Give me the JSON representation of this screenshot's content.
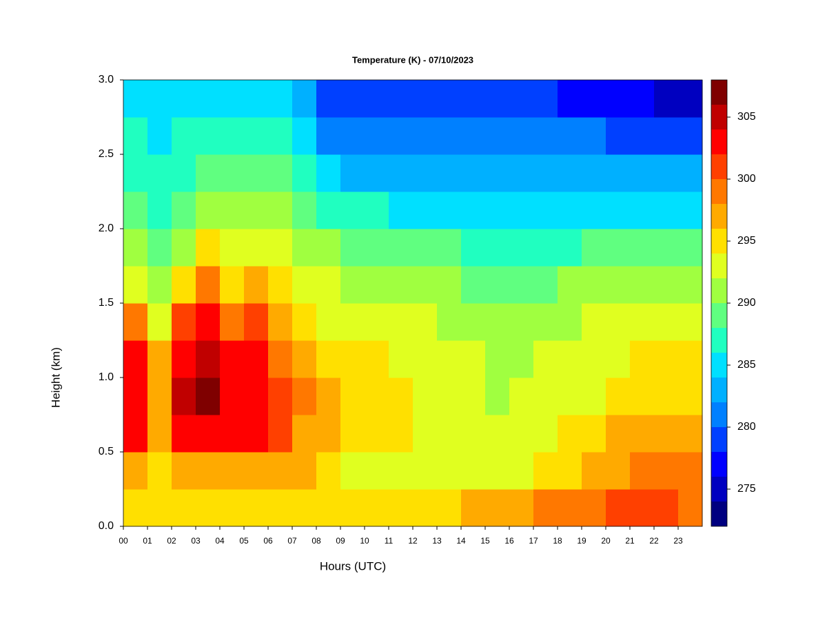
{
  "chart_data": {
    "type": "heatmap",
    "title": "Temperature (K) - 07/10/2023",
    "x_label": "Hours (UTC)",
    "y_label": "Height (km)",
    "xlim": [
      0,
      24
    ],
    "ylim": [
      0,
      3
    ],
    "xticks": [
      {
        "value": 0,
        "label": "00"
      },
      {
        "value": 1,
        "label": "01"
      },
      {
        "value": 2,
        "label": "02"
      },
      {
        "value": 3,
        "label": "03"
      },
      {
        "value": 4,
        "label": "04"
      },
      {
        "value": 5,
        "label": "05"
      },
      {
        "value": 6,
        "label": "06"
      },
      {
        "value": 7,
        "label": "07"
      },
      {
        "value": 8,
        "label": "08"
      },
      {
        "value": 9,
        "label": "09"
      },
      {
        "value": 10,
        "label": "10"
      },
      {
        "value": 11,
        "label": "11"
      },
      {
        "value": 12,
        "label": "12"
      },
      {
        "value": 13,
        "label": "13"
      },
      {
        "value": 14,
        "label": "14"
      },
      {
        "value": 15,
        "label": "15"
      },
      {
        "value": 16,
        "label": "16"
      },
      {
        "value": 17,
        "label": "17"
      },
      {
        "value": 18,
        "label": "18"
      },
      {
        "value": 19,
        "label": "19"
      },
      {
        "value": 20,
        "label": "20"
      },
      {
        "value": 21,
        "label": "21"
      },
      {
        "value": 22,
        "label": "22"
      },
      {
        "value": 23,
        "label": "23"
      }
    ],
    "yticks": [
      {
        "value": 0,
        "label": "0.0"
      },
      0.5,
      {
        "value": 1,
        "label": "1.0"
      },
      1.5,
      {
        "value": 2,
        "label": "2.0"
      },
      2.5,
      {
        "value": 3,
        "label": "3.0"
      }
    ],
    "x": [
      0.5,
      1.5,
      2.5,
      3.5,
      4.5,
      5.5,
      6.5,
      7.5,
      8.5,
      9.5,
      10.5,
      11.5,
      12.5,
      13.5,
      14.5,
      15.5,
      16.5,
      17.5,
      18.5,
      19.5,
      20.5,
      21.5,
      22.5,
      23.5
    ],
    "y": [
      0.125,
      0.375,
      0.625,
      0.875,
      1.125,
      1.375,
      1.625,
      1.875,
      2.125,
      2.375,
      2.625,
      2.875
    ],
    "z": [
      [
        295,
        295,
        295,
        295,
        295,
        295,
        295,
        295,
        294,
        294,
        294,
        294,
        294,
        295,
        296,
        297,
        297,
        298,
        298,
        299,
        300,
        301,
        300,
        299
      ],
      [
        296,
        295,
        296,
        297,
        297,
        296,
        297,
        296,
        294,
        293,
        293,
        293,
        293,
        293,
        293,
        293,
        293,
        294,
        295,
        296,
        297,
        298,
        298,
        298
      ],
      [
        302,
        296,
        302,
        303,
        302,
        302,
        300,
        297,
        296,
        295,
        295,
        294,
        293,
        293,
        293,
        292,
        292,
        293,
        294,
        295,
        296,
        297,
        297,
        296
      ],
      [
        303,
        297,
        304,
        306,
        303,
        303,
        300,
        298,
        296,
        295,
        294,
        294,
        293,
        293,
        292,
        291,
        292,
        292,
        293,
        293,
        294,
        295,
        295,
        295
      ],
      [
        302,
        296,
        303,
        305,
        302,
        302,
        299,
        297,
        295,
        294,
        294,
        293,
        293,
        292,
        292,
        291,
        291,
        292,
        292,
        293,
        293,
        294,
        294,
        294
      ],
      [
        298,
        293,
        300,
        302,
        299,
        300,
        297,
        295,
        293,
        293,
        292,
        292,
        292,
        291,
        291,
        290,
        290,
        291,
        291,
        292,
        292,
        292,
        292,
        292
      ],
      [
        293,
        290,
        294,
        298,
        295,
        296,
        294,
        293,
        292,
        291,
        291,
        290,
        290,
        290,
        289,
        289,
        289,
        289,
        290,
        290,
        290,
        290,
        290,
        290
      ],
      [
        290,
        288,
        291,
        294,
        292,
        293,
        292,
        291,
        290,
        289,
        288,
        288,
        288,
        288,
        287,
        287,
        287,
        287,
        287,
        288,
        288,
        288,
        288,
        288
      ],
      [
        288,
        287,
        289,
        291,
        290,
        290,
        290,
        289,
        287,
        286,
        286,
        285,
        285,
        285,
        285,
        285,
        285,
        285,
        285,
        285,
        285,
        285,
        285,
        285
      ],
      [
        287,
        286,
        287,
        289,
        288,
        288,
        288,
        286,
        284,
        283,
        283,
        283,
        283,
        283,
        283,
        283,
        283,
        283,
        283,
        282,
        282,
        282,
        282,
        282
      ],
      [
        286,
        285,
        286,
        287,
        287,
        286,
        286,
        284,
        281,
        280,
        280,
        280,
        280,
        280,
        280,
        280,
        280,
        280,
        280,
        280,
        279,
        279,
        278,
        278
      ],
      [
        285,
        284,
        285,
        285,
        285,
        284,
        284,
        282,
        279,
        278,
        278,
        278,
        278,
        278,
        278,
        278,
        278,
        278,
        277,
        277,
        277,
        276,
        275,
        275
      ]
    ],
    "colorbar": {
      "levels": [
        272,
        274,
        276,
        278,
        280,
        282,
        284,
        286,
        288,
        290,
        292,
        294,
        296,
        298,
        300,
        302,
        304,
        306,
        308
      ],
      "colors": [
        "#000080",
        "#0000c0",
        "#0000ff",
        "#0040ff",
        "#0080ff",
        "#00b0ff",
        "#00e0ff",
        "#20ffc0",
        "#60ff80",
        "#a0ff40",
        "#e0ff20",
        "#ffe000",
        "#ffaa00",
        "#ff7800",
        "#ff4000",
        "#ff0000",
        "#c00000",
        "#7f0000"
      ],
      "ticks": [
        275,
        280,
        285,
        290,
        295,
        300,
        305
      ]
    }
  }
}
